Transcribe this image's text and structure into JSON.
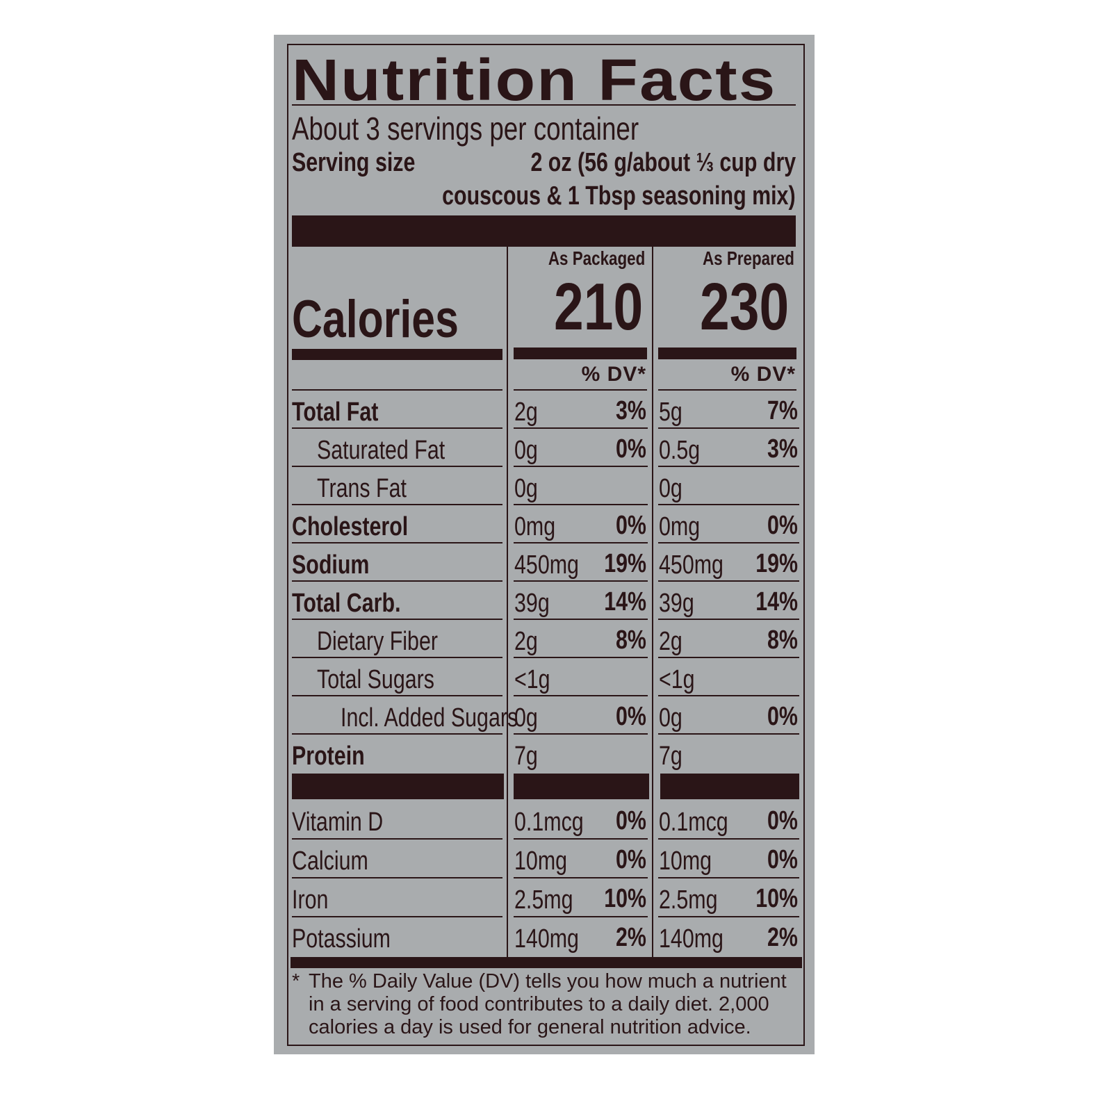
{
  "label": {
    "title": "Nutrition Facts",
    "servings_per_container": "About 3 servings per container",
    "serving_size_label": "Serving size",
    "serving_size_line1": "2 oz (56 g/about ⅓ cup dry",
    "serving_size_line2": "couscous & 1 Tbsp seasoning mix)",
    "calories_label": "Calories",
    "columns": [
      {
        "header": "As Packaged",
        "calories": "210",
        "dv_header": "% DV*"
      },
      {
        "header": "As Prepared",
        "calories": "230",
        "dv_header": "% DV*"
      }
    ],
    "nutrients": [
      {
        "name": "Total Fat",
        "bold": true,
        "indent": 0,
        "packaged": "2g",
        "packaged_dv": "3%",
        "prepared": "5g",
        "prepared_dv": "7%"
      },
      {
        "name": "Saturated Fat",
        "bold": false,
        "indent": 1,
        "packaged": "0g",
        "packaged_dv": "0%",
        "prepared": "0.5g",
        "prepared_dv": "3%"
      },
      {
        "name": "Trans Fat",
        "bold": false,
        "indent": 1,
        "packaged": "0g",
        "packaged_dv": "",
        "prepared": "0g",
        "prepared_dv": ""
      },
      {
        "name": "Cholesterol",
        "bold": true,
        "indent": 0,
        "packaged": "0mg",
        "packaged_dv": "0%",
        "prepared": "0mg",
        "prepared_dv": "0%"
      },
      {
        "name": "Sodium",
        "bold": true,
        "indent": 0,
        "packaged": "450mg",
        "packaged_dv": "19%",
        "prepared": "450mg",
        "prepared_dv": "19%"
      },
      {
        "name": "Total Carb.",
        "bold": true,
        "indent": 0,
        "packaged": "39g",
        "packaged_dv": "14%",
        "prepared": "39g",
        "prepared_dv": "14%"
      },
      {
        "name": "Dietary Fiber",
        "bold": false,
        "indent": 1,
        "packaged": "2g",
        "packaged_dv": "8%",
        "prepared": "2g",
        "prepared_dv": "8%"
      },
      {
        "name": "Total Sugars",
        "bold": false,
        "indent": 1,
        "packaged": "<1g",
        "packaged_dv": "",
        "prepared": "<1g",
        "prepared_dv": ""
      },
      {
        "name": "Incl. Added Sugars",
        "bold": false,
        "indent": 2,
        "packaged": "0g",
        "packaged_dv": "0%",
        "prepared": "0g",
        "prepared_dv": "0%"
      },
      {
        "name": "Protein",
        "bold": true,
        "indent": 0,
        "packaged": "7g",
        "packaged_dv": "",
        "prepared": "7g",
        "prepared_dv": ""
      }
    ],
    "vitamins": [
      {
        "name": "Vitamin D",
        "packaged": "0.1mcg",
        "packaged_dv": "0%",
        "prepared": "0.1mcg",
        "prepared_dv": "0%"
      },
      {
        "name": "Calcium",
        "packaged": "10mg",
        "packaged_dv": "0%",
        "prepared": "10mg",
        "prepared_dv": "0%"
      },
      {
        "name": "Iron",
        "packaged": "2.5mg",
        "packaged_dv": "10%",
        "prepared": "2.5mg",
        "prepared_dv": "10%"
      },
      {
        "name": "Potassium",
        "packaged": "140mg",
        "packaged_dv": "2%",
        "prepared": "140mg",
        "prepared_dv": "2%"
      }
    ],
    "footnote_marker": "*",
    "footnote": "The % Daily Value (DV) tells you how much a nutrient in a serving of food contributes to a daily diet. 2,000 calories a day is used for general nutrition advice.",
    "colors": {
      "ink": "#2a1517",
      "background": "#a9acae"
    }
  }
}
